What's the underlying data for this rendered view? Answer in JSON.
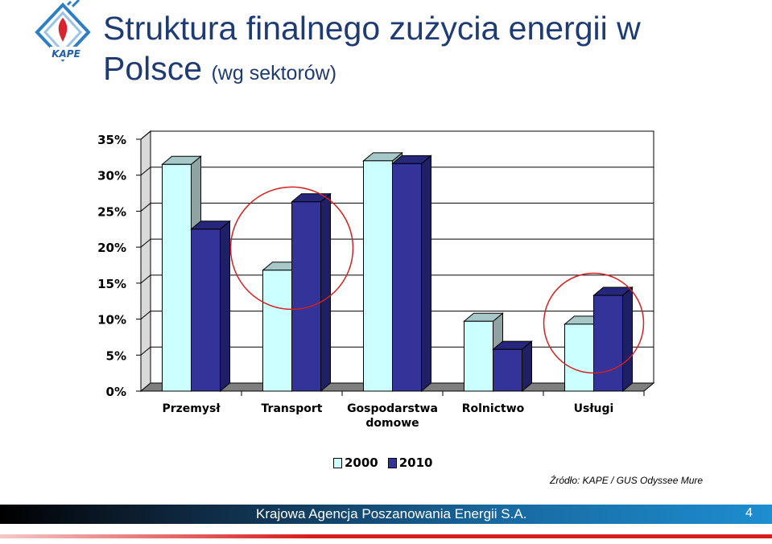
{
  "header": {
    "title_line1": "Struktura finalnego zużycia energii w",
    "title_line2": "Polsce",
    "title_sub": "(wg sektorów)",
    "logo_text": "KAPE"
  },
  "chart_data": {
    "type": "bar",
    "categories": [
      "Przemysł",
      "Transport",
      "Gospodarstwa domowe",
      "Rolnictwo",
      "Usługi"
    ],
    "category_lines": [
      [
        "Przemysł"
      ],
      [
        "Transport"
      ],
      [
        "Gospodarstwa",
        "domowe"
      ],
      [
        "Rolnictwo"
      ],
      [
        "Usługi"
      ]
    ],
    "series": [
      {
        "name": "2000",
        "values": [
          31.5,
          16.8,
          32.0,
          9.7,
          9.3
        ],
        "color": "#ccffff"
      },
      {
        "name": "2010",
        "values": [
          22.5,
          26.3,
          31.6,
          5.8,
          13.3
        ],
        "color": "#333399"
      }
    ],
    "ylim": [
      0,
      35
    ],
    "yticks": [
      "0%",
      "5%",
      "10%",
      "15%",
      "20%",
      "25%",
      "30%",
      "35%"
    ],
    "ytick_values": [
      0,
      5,
      10,
      15,
      20,
      25,
      30,
      35
    ],
    "grid": true,
    "legend": "bottom",
    "highlighted_categories": [
      "Transport",
      "Usługi"
    ],
    "highlight_color": "#d42020"
  },
  "source_text": "Źródło: KAPE / GUS Odyssee Mure",
  "footer": {
    "org": "Krajowa Agencja Poszanowania Energii S.A.",
    "page": "4"
  }
}
